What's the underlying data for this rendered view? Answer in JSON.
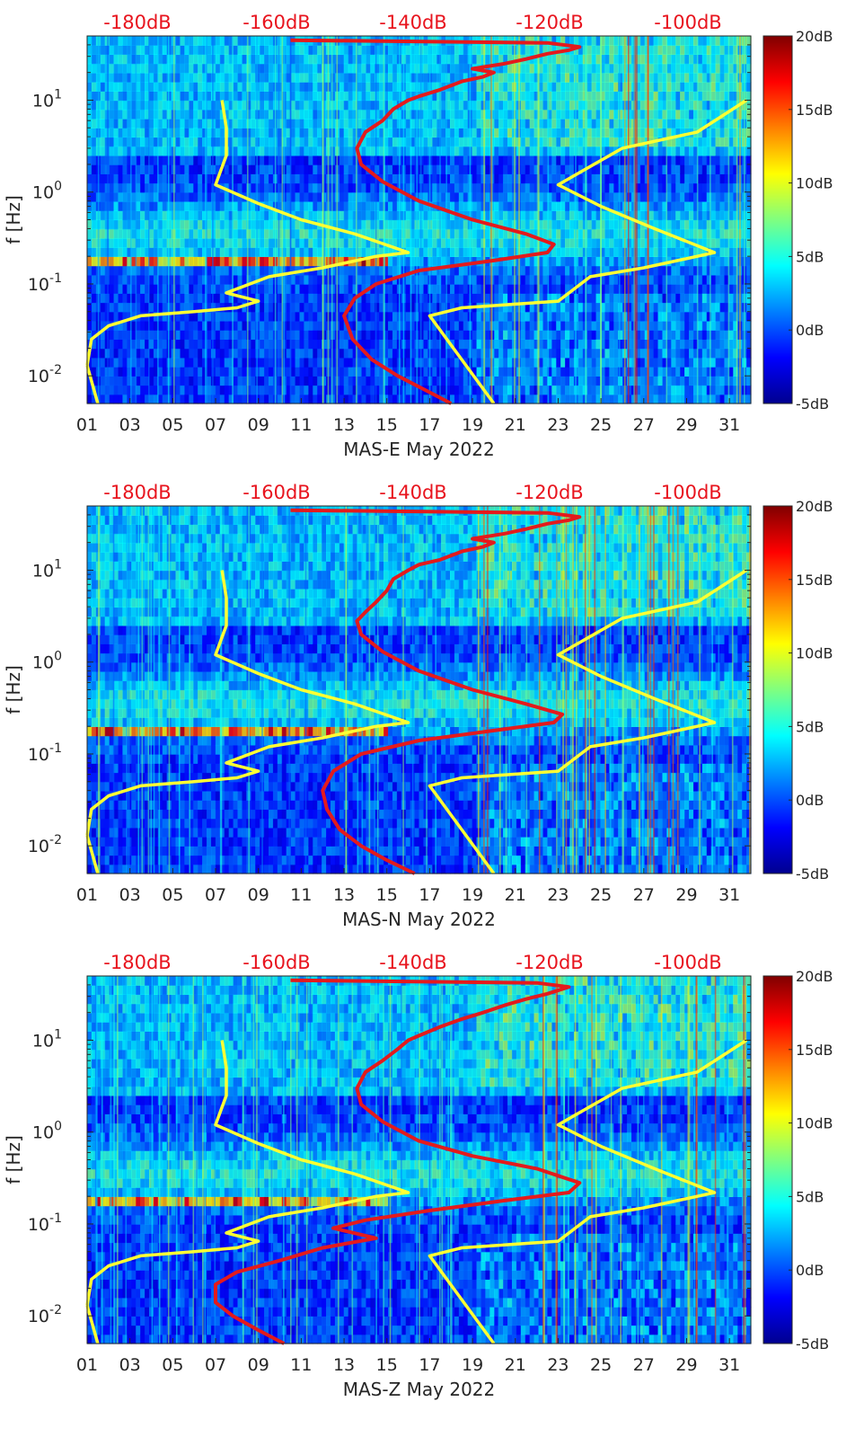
{
  "chart_data": [
    {
      "type": "heatmap",
      "xlabel": "MAS-E May 2022",
      "ylabel": "f [Hz]",
      "x_ticks": [
        "01",
        "03",
        "05",
        "07",
        "09",
        "11",
        "13",
        "15",
        "17",
        "19",
        "21",
        "23",
        "25",
        "27",
        "29",
        "31"
      ],
      "y_ticks": [
        "10^{-2}",
        "10^{-1}",
        "10^{0}",
        "10^{1}"
      ],
      "top_axis_ticks": [
        "-180dB",
        "-160dB",
        "-140dB",
        "-120dB",
        "-100dB"
      ],
      "colorbar_ticks": [
        "20dB",
        "15dB",
        "10dB",
        "5dB",
        "0dB",
        "-5dB"
      ],
      "clim": [
        -5,
        20
      ],
      "xlim": [
        1,
        32
      ],
      "ylim": [
        0.005,
        50
      ],
      "yscale": "log",
      "overlays": [
        {
          "color": "#ffff33",
          "segments": [
            [
              [
                1.0,
                0.013
              ],
              [
                1.5,
                0.005
              ]
            ],
            [
              [
                1.0,
                0.013
              ],
              [
                1.2,
                0.025
              ],
              [
                2.0,
                0.035
              ],
              [
                3.5,
                0.045
              ],
              [
                6.0,
                0.05
              ],
              [
                8.0,
                0.055
              ],
              [
                9.0,
                0.065
              ],
              [
                7.5,
                0.08
              ],
              [
                9.5,
                0.12
              ],
              [
                12.0,
                0.15
              ],
              [
                14.5,
                0.2
              ],
              [
                16.0,
                0.22
              ],
              [
                13.5,
                0.35
              ],
              [
                11.0,
                0.5
              ],
              [
                9.0,
                0.75
              ],
              [
                7.0,
                1.2
              ],
              [
                7.5,
                2.5
              ],
              [
                7.5,
                5.0
              ],
              [
                7.3,
                10.0
              ]
            ],
            [
              [
                20.0,
                0.005
              ],
              [
                17.0,
                0.045
              ],
              [
                18.5,
                0.055
              ],
              [
                23.0,
                0.065
              ],
              [
                24.5,
                0.12
              ],
              [
                27.0,
                0.15
              ],
              [
                29.5,
                0.2
              ],
              [
                30.3,
                0.22
              ],
              [
                27.5,
                0.4
              ],
              [
                25.0,
                0.7
              ],
              [
                23.0,
                1.2
              ],
              [
                26.0,
                3.0
              ],
              [
                29.5,
                4.5
              ],
              [
                31.8,
                10.0
              ]
            ]
          ]
        },
        {
          "color": "#e41a1c",
          "points": [
            [
              18.0,
              0.005
            ],
            [
              16.8,
              0.007
            ],
            [
              15.5,
              0.01
            ],
            [
              14.3,
              0.015
            ],
            [
              13.4,
              0.025
            ],
            [
              13.0,
              0.045
            ],
            [
              13.5,
              0.07
            ],
            [
              14.5,
              0.1
            ],
            [
              16.5,
              0.14
            ],
            [
              20.0,
              0.18
            ],
            [
              22.5,
              0.22
            ],
            [
              22.8,
              0.27
            ],
            [
              21.5,
              0.35
            ],
            [
              19.0,
              0.5
            ],
            [
              16.5,
              0.8
            ],
            [
              14.8,
              1.3
            ],
            [
              13.8,
              2.0
            ],
            [
              13.6,
              3.0
            ],
            [
              14.0,
              4.5
            ],
            [
              14.8,
              6.0
            ],
            [
              15.3,
              8.0
            ],
            [
              16.0,
              10.0
            ],
            [
              16.5,
              11.0
            ],
            [
              17.5,
              13.0
            ],
            [
              18.5,
              16.0
            ],
            [
              19.5,
              18.0
            ],
            [
              20.0,
              20.0
            ],
            [
              19.0,
              22.0
            ],
            [
              20.5,
              25.0
            ],
            [
              21.5,
              28.0
            ],
            [
              22.5,
              32.0
            ],
            [
              23.5,
              35.0
            ],
            [
              24.0,
              38.0
            ],
            [
              22.5,
              42.0
            ],
            [
              10.5,
              45.0
            ]
          ]
        }
      ]
    },
    {
      "type": "heatmap",
      "xlabel": "MAS-N May 2022",
      "ylabel": "f [Hz]",
      "x_ticks": [
        "01",
        "03",
        "05",
        "07",
        "09",
        "11",
        "13",
        "15",
        "17",
        "19",
        "21",
        "23",
        "25",
        "27",
        "29",
        "31"
      ],
      "y_ticks": [
        "10^{-2}",
        "10^{-1}",
        "10^{0}",
        "10^{1}"
      ],
      "top_axis_ticks": [
        "-180dB",
        "-160dB",
        "-140dB",
        "-120dB",
        "-100dB"
      ],
      "colorbar_ticks": [
        "20dB",
        "15dB",
        "10dB",
        "5dB",
        "0dB",
        "-5dB"
      ],
      "clim": [
        -5,
        20
      ],
      "xlim": [
        1,
        32
      ],
      "ylim": [
        0.005,
        50
      ],
      "yscale": "log",
      "overlays": [
        {
          "color": "#ffff33",
          "segments": [
            [
              [
                1.0,
                0.013
              ],
              [
                1.5,
                0.005
              ]
            ],
            [
              [
                1.0,
                0.013
              ],
              [
                1.2,
                0.025
              ],
              [
                2.0,
                0.035
              ],
              [
                3.5,
                0.045
              ],
              [
                6.0,
                0.05
              ],
              [
                8.0,
                0.055
              ],
              [
                9.0,
                0.065
              ],
              [
                7.5,
                0.08
              ],
              [
                9.5,
                0.12
              ],
              [
                12.0,
                0.15
              ],
              [
                14.5,
                0.2
              ],
              [
                16.0,
                0.22
              ],
              [
                13.5,
                0.35
              ],
              [
                11.0,
                0.5
              ],
              [
                9.0,
                0.75
              ],
              [
                7.0,
                1.2
              ],
              [
                7.5,
                2.5
              ],
              [
                7.5,
                5.0
              ],
              [
                7.3,
                10.0
              ]
            ],
            [
              [
                20.0,
                0.005
              ],
              [
                17.0,
                0.045
              ],
              [
                18.5,
                0.055
              ],
              [
                23.0,
                0.065
              ],
              [
                24.5,
                0.12
              ],
              [
                27.0,
                0.15
              ],
              [
                29.5,
                0.2
              ],
              [
                30.3,
                0.22
              ],
              [
                27.5,
                0.4
              ],
              [
                25.0,
                0.7
              ],
              [
                23.0,
                1.2
              ],
              [
                26.0,
                3.0
              ],
              [
                29.5,
                4.5
              ],
              [
                31.8,
                10.0
              ]
            ]
          ]
        },
        {
          "color": "#e41a1c",
          "points": [
            [
              16.3,
              0.005
            ],
            [
              15.0,
              0.007
            ],
            [
              13.8,
              0.01
            ],
            [
              12.8,
              0.015
            ],
            [
              12.2,
              0.025
            ],
            [
              12.0,
              0.04
            ],
            [
              12.5,
              0.065
            ],
            [
              13.8,
              0.1
            ],
            [
              16.5,
              0.14
            ],
            [
              20.0,
              0.18
            ],
            [
              22.8,
              0.22
            ],
            [
              23.2,
              0.27
            ],
            [
              21.5,
              0.35
            ],
            [
              19.0,
              0.5
            ],
            [
              16.5,
              0.8
            ],
            [
              14.8,
              1.3
            ],
            [
              13.8,
              2.0
            ],
            [
              13.6,
              2.8
            ],
            [
              14.0,
              3.5
            ],
            [
              14.5,
              4.5
            ],
            [
              15.0,
              6.0
            ],
            [
              15.3,
              8.0
            ],
            [
              16.0,
              10.0
            ],
            [
              16.5,
              11.5
            ],
            [
              17.5,
              13.0
            ],
            [
              18.5,
              16.0
            ],
            [
              19.5,
              18.0
            ],
            [
              20.0,
              20.0
            ],
            [
              19.0,
              22.0
            ],
            [
              20.5,
              25.0
            ],
            [
              21.5,
              28.0
            ],
            [
              22.5,
              32.0
            ],
            [
              23.5,
              35.0
            ],
            [
              24.0,
              38.0
            ],
            [
              22.5,
              42.0
            ],
            [
              10.5,
              45.0
            ]
          ]
        }
      ]
    },
    {
      "type": "heatmap",
      "xlabel": "MAS-Z May 2022",
      "ylabel": "f [Hz]",
      "x_ticks": [
        "01",
        "03",
        "05",
        "07",
        "09",
        "11",
        "13",
        "15",
        "17",
        "19",
        "21",
        "23",
        "25",
        "27",
        "29",
        "31"
      ],
      "y_ticks": [
        "10^{-2}",
        "10^{-1}",
        "10^{0}",
        "10^{1}"
      ],
      "top_axis_ticks": [
        "-180dB",
        "-160dB",
        "-140dB",
        "-120dB",
        "-100dB"
      ],
      "colorbar_ticks": [
        "20dB",
        "15dB",
        "10dB",
        "5dB",
        "0dB",
        "-5dB"
      ],
      "clim": [
        -5,
        20
      ],
      "xlim": [
        1,
        32
      ],
      "ylim": [
        0.005,
        50
      ],
      "yscale": "log",
      "overlays": [
        {
          "color": "#ffff33",
          "segments": [
            [
              [
                1.0,
                0.013
              ],
              [
                1.5,
                0.005
              ]
            ],
            [
              [
                1.0,
                0.013
              ],
              [
                1.2,
                0.025
              ],
              [
                2.0,
                0.035
              ],
              [
                3.5,
                0.045
              ],
              [
                6.0,
                0.05
              ],
              [
                8.0,
                0.055
              ],
              [
                9.0,
                0.065
              ],
              [
                7.5,
                0.08
              ],
              [
                9.5,
                0.12
              ],
              [
                12.0,
                0.15
              ],
              [
                14.5,
                0.2
              ],
              [
                16.0,
                0.22
              ],
              [
                13.5,
                0.35
              ],
              [
                11.0,
                0.5
              ],
              [
                9.0,
                0.75
              ],
              [
                7.0,
                1.2
              ],
              [
                7.5,
                2.5
              ],
              [
                7.5,
                5.0
              ],
              [
                7.3,
                10.0
              ]
            ],
            [
              [
                20.0,
                0.005
              ],
              [
                17.0,
                0.045
              ],
              [
                18.5,
                0.055
              ],
              [
                23.0,
                0.065
              ],
              [
                24.5,
                0.12
              ],
              [
                27.0,
                0.15
              ],
              [
                29.5,
                0.2
              ],
              [
                30.3,
                0.22
              ],
              [
                27.5,
                0.4
              ],
              [
                25.0,
                0.7
              ],
              [
                23.0,
                1.2
              ],
              [
                26.0,
                3.0
              ],
              [
                29.5,
                4.5
              ],
              [
                31.8,
                10.0
              ]
            ]
          ]
        },
        {
          "color": "#e41a1c",
          "points": [
            [
              10.2,
              0.005
            ],
            [
              9.0,
              0.007
            ],
            [
              7.8,
              0.01
            ],
            [
              7.0,
              0.014
            ],
            [
              7.0,
              0.022
            ],
            [
              8.0,
              0.03
            ],
            [
              10.0,
              0.04
            ],
            [
              12.0,
              0.055
            ],
            [
              14.5,
              0.07
            ],
            [
              12.5,
              0.09
            ],
            [
              14.0,
              0.11
            ],
            [
              17.0,
              0.14
            ],
            [
              20.5,
              0.18
            ],
            [
              23.5,
              0.22
            ],
            [
              24.0,
              0.28
            ],
            [
              22.0,
              0.4
            ],
            [
              19.0,
              0.55
            ],
            [
              16.5,
              0.8
            ],
            [
              14.8,
              1.3
            ],
            [
              13.8,
              2.0
            ],
            [
              13.6,
              3.0
            ],
            [
              14.0,
              4.5
            ],
            [
              14.8,
              6.0
            ],
            [
              15.5,
              8.0
            ],
            [
              16.0,
              10.0
            ],
            [
              16.8,
              12.0
            ],
            [
              17.5,
              14.0
            ],
            [
              18.5,
              17.0
            ],
            [
              19.5,
              20.0
            ],
            [
              20.5,
              24.0
            ],
            [
              21.5,
              28.0
            ],
            [
              22.5,
              32.0
            ],
            [
              23.5,
              38.0
            ],
            [
              22.0,
              42.0
            ],
            [
              10.5,
              45.0
            ]
          ]
        }
      ]
    }
  ]
}
